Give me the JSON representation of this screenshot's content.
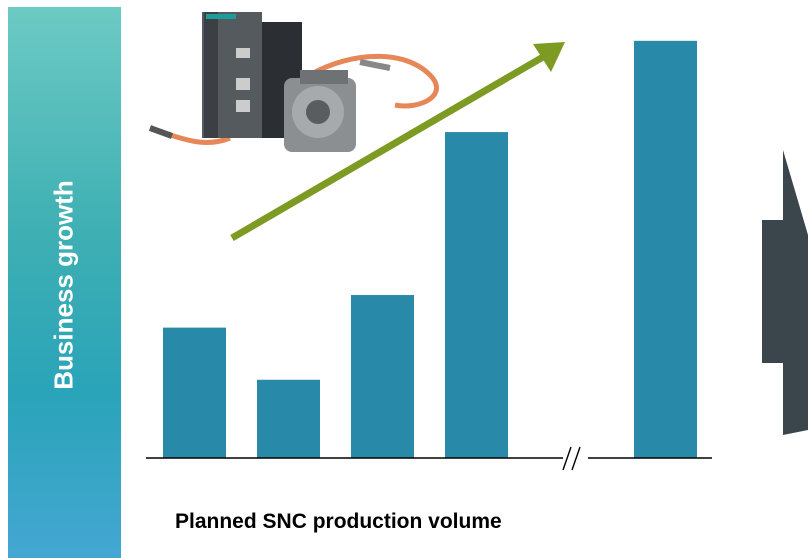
{
  "side_label": "Business growth",
  "x_caption": "Planned SNC production volume",
  "colors": {
    "bar": "#2889a8",
    "trend_arrow": "#7d9a23",
    "right_arrow": "#3a454c",
    "axis": "#000000"
  },
  "icons": {
    "product_photo": "servo-drive-and-motor-icon"
  },
  "chart_data": {
    "type": "bar",
    "title": "",
    "xlabel": "Planned SNC production volume",
    "ylabel": "Business growth",
    "categories": [
      "",
      "",
      "",
      "",
      ""
    ],
    "values": [
      40,
      24,
      50,
      100,
      128
    ],
    "ylim": [
      0,
      135
    ],
    "axis_break_between": [
      3,
      4
    ],
    "grid": false,
    "legend": "none",
    "annotations": [
      "upward-trend-arrow"
    ]
  }
}
